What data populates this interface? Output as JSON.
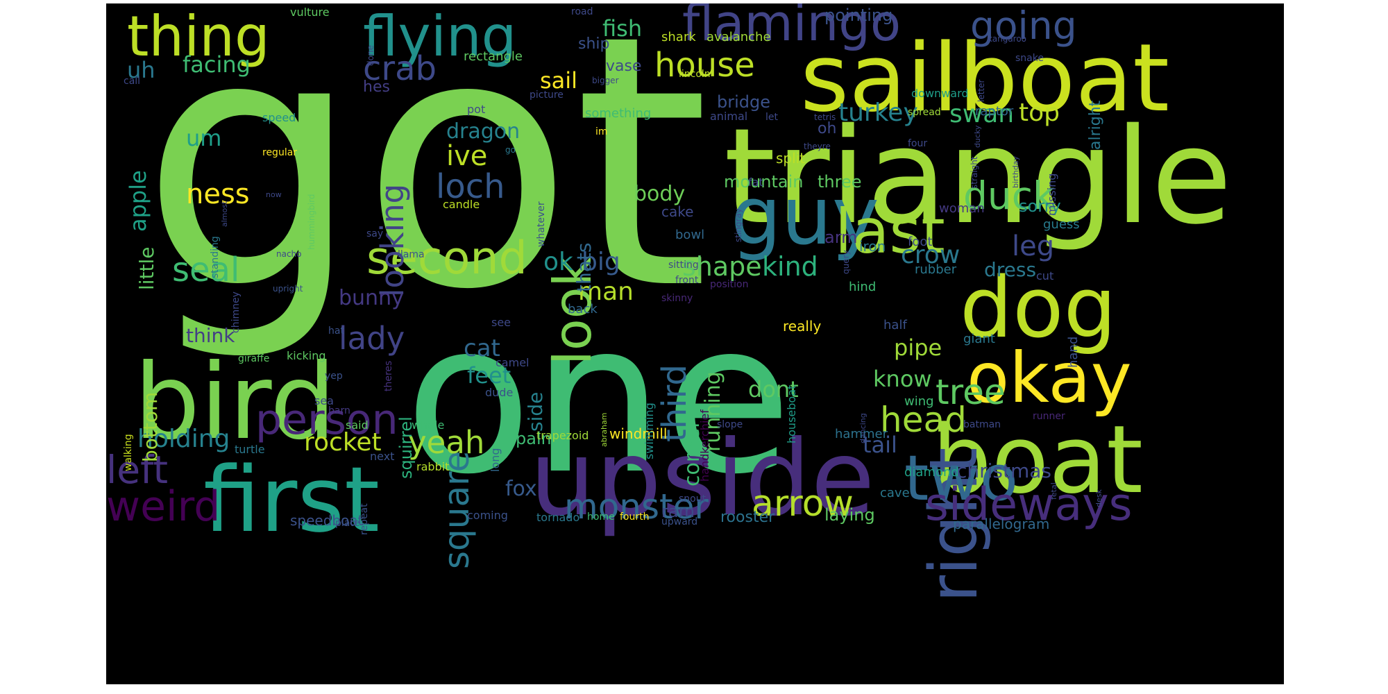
{
  "wordcloud": {
    "words": [
      {
        "text": "got",
        "color": "#7ad151"
      },
      {
        "text": "one",
        "color": "#3fbc73"
      },
      {
        "text": "triangle",
        "color": "#a0da39"
      },
      {
        "text": "sailboat",
        "color": "#cae11f"
      },
      {
        "text": "upside",
        "color": "#472e7c"
      },
      {
        "text": "bird",
        "color": "#7ad151"
      },
      {
        "text": "boat",
        "color": "#a0da39"
      },
      {
        "text": "dog",
        "color": "#bddf26"
      },
      {
        "text": "first",
        "color": "#1fa187"
      },
      {
        "text": "guy",
        "color": "#2a788e"
      },
      {
        "text": "okay",
        "color": "#fde725"
      },
      {
        "text": "right",
        "color": "#3b528b"
      },
      {
        "text": "thing",
        "color": "#bddf26"
      },
      {
        "text": "flying",
        "color": "#21918c"
      },
      {
        "text": "look",
        "color": "#7ad151"
      },
      {
        "text": "last",
        "color": "#a0da39"
      },
      {
        "text": "two",
        "color": "#31688e"
      },
      {
        "text": "flamingo",
        "color": "#414487"
      },
      {
        "text": "second",
        "color": "#a0da39"
      },
      {
        "text": "person",
        "color": "#482878"
      },
      {
        "text": "arrow",
        "color": "#b5de2b"
      },
      {
        "text": "sideways",
        "color": "#472e7c"
      },
      {
        "text": "square",
        "color": "#2a788e"
      },
      {
        "text": "weird",
        "color": "#440154"
      },
      {
        "text": "monster",
        "color": "#31688e"
      },
      {
        "text": "left",
        "color": "#46327e"
      },
      {
        "text": "duck",
        "color": "#5ec962"
      },
      {
        "text": "going",
        "color": "#3b528b"
      },
      {
        "text": "house",
        "color": "#bddf26"
      },
      {
        "text": "crab",
        "color": "#3e4989"
      },
      {
        "text": "head",
        "color": "#a0da39"
      },
      {
        "text": "tree",
        "color": "#5ec962"
      },
      {
        "text": "third",
        "color": "#31688e"
      },
      {
        "text": "loch",
        "color": "#375a8c"
      },
      {
        "text": "looking",
        "color": "#414487"
      },
      {
        "text": "seal",
        "color": "#3fbc73"
      },
      {
        "text": "ness",
        "color": "#fde725"
      },
      {
        "text": "lady",
        "color": "#414487"
      },
      {
        "text": "holding",
        "color": "#26828e"
      },
      {
        "text": "rocket",
        "color": "#bddf26"
      },
      {
        "text": "yeah",
        "color": "#a0da39"
      },
      {
        "text": "shape",
        "color": "#5ec962"
      },
      {
        "text": "kind",
        "color": "#2db27d"
      },
      {
        "text": "ok",
        "color": "#21918c"
      },
      {
        "text": "big",
        "color": "#375a8c"
      },
      {
        "text": "man",
        "color": "#b5de2b"
      },
      {
        "text": "crow",
        "color": "#2a788e"
      },
      {
        "text": "leg",
        "color": "#3e4989"
      },
      {
        "text": "swan",
        "color": "#3fbc73"
      },
      {
        "text": "top",
        "color": "#bddf26"
      },
      {
        "text": "turkey",
        "color": "#26828e"
      },
      {
        "text": "ive",
        "color": "#bddf26"
      },
      {
        "text": "fish",
        "color": "#3fbc73"
      },
      {
        "text": "um",
        "color": "#1f9e89"
      },
      {
        "text": "uh",
        "color": "#2a788e"
      },
      {
        "text": "apple",
        "color": "#1fa187"
      },
      {
        "text": "facing",
        "color": "#3fbc73"
      },
      {
        "text": "sail",
        "color": "#fde725"
      },
      {
        "text": "dragon",
        "color": "#26828e"
      },
      {
        "text": "cat",
        "color": "#31688e"
      },
      {
        "text": "feet",
        "color": "#21918c"
      },
      {
        "text": "running",
        "color": "#5ec962"
      },
      {
        "text": "corner",
        "color": "#3fbc73"
      },
      {
        "text": "pipe",
        "color": "#a0da39"
      },
      {
        "text": "dont",
        "color": "#5ec962"
      },
      {
        "text": "know",
        "color": "#5ec962"
      },
      {
        "text": "tail",
        "color": "#3b528b"
      },
      {
        "text": "christmas",
        "color": "#3e4989"
      },
      {
        "text": "bunny",
        "color": "#443983"
      },
      {
        "text": "think",
        "color": "#433e85"
      },
      {
        "text": "bottom",
        "color": "#a0da39"
      },
      {
        "text": "little",
        "color": "#5ec962"
      },
      {
        "text": "side",
        "color": "#26828e"
      },
      {
        "text": "thats",
        "color": "#31688e"
      },
      {
        "text": "body",
        "color": "#6ece58"
      },
      {
        "text": "fox",
        "color": "#375a8c"
      },
      {
        "text": "dress",
        "color": "#2a788e"
      },
      {
        "text": "sorry",
        "color": "#21918c"
      },
      {
        "text": "mountain",
        "color": "#5ec962"
      },
      {
        "text": "three",
        "color": "#5ec962"
      },
      {
        "text": "bridge",
        "color": "#3b528b"
      },
      {
        "text": "arm",
        "color": "#46327e"
      },
      {
        "text": "squirrel",
        "color": "#2db27d"
      },
      {
        "text": "palm",
        "color": "#3fbc73"
      },
      {
        "text": "ram",
        "color": "#3e4989"
      },
      {
        "text": "rooster",
        "color": "#2c728e"
      },
      {
        "text": "laying",
        "color": "#5ec962"
      },
      {
        "text": "speedboat",
        "color": "#3b528b"
      },
      {
        "text": "parallelogram",
        "color": "#31688e"
      },
      {
        "text": "windmill",
        "color": "#fde725"
      },
      {
        "text": "ship",
        "color": "#3b528b"
      },
      {
        "text": "vase",
        "color": "#3e4989"
      },
      {
        "text": "pointing",
        "color": "#3b528b"
      },
      {
        "text": "alright",
        "color": "#2a788e"
      },
      {
        "text": "hes",
        "color": "#433e85"
      },
      {
        "text": "something",
        "color": "#3fbc73"
      },
      {
        "text": "oh",
        "color": "#3e4989"
      },
      {
        "text": "split",
        "color": "#bddf26"
      },
      {
        "text": "cake",
        "color": "#3e4989"
      },
      {
        "text": "woman",
        "color": "#443983"
      },
      {
        "text": "guess",
        "color": "#287c8e"
      },
      {
        "text": "foot",
        "color": "#3e4989"
      },
      {
        "text": "iron",
        "color": "#2a788e"
      },
      {
        "text": "rubber",
        "color": "#2a788e"
      },
      {
        "text": "hind",
        "color": "#3fbc73"
      },
      {
        "text": "half",
        "color": "#3b528b"
      },
      {
        "text": "giant",
        "color": "#2a788e"
      },
      {
        "text": "hand",
        "color": "#3b528b"
      },
      {
        "text": "wing",
        "color": "#3fbc73"
      },
      {
        "text": "diamond",
        "color": "#1fa187"
      },
      {
        "text": "hammer",
        "color": "#2c728e"
      },
      {
        "text": "cave",
        "color": "#2a788e"
      },
      {
        "text": "really",
        "color": "#fde725"
      },
      {
        "text": "shark",
        "color": "#bddf26"
      },
      {
        "text": "avalanche",
        "color": "#a0da39"
      },
      {
        "text": "rectangle",
        "color": "#5ec962"
      },
      {
        "text": "raptor",
        "color": "#31688e"
      },
      {
        "text": "downward",
        "color": "#1f9e89"
      },
      {
        "text": "missing",
        "color": "#3e4989"
      },
      {
        "text": "back",
        "color": "#31688e"
      },
      {
        "text": "bowl",
        "color": "#31688e"
      },
      {
        "text": "handkerchief",
        "color": "#440154"
      },
      {
        "text": "houseboat",
        "color": "#1f9e89"
      },
      {
        "text": "swimming",
        "color": "#21918c"
      },
      {
        "text": "trapezoid",
        "color": "#a0da39"
      },
      {
        "text": "tornado",
        "color": "#2a788e"
      },
      {
        "text": "home",
        "color": "#3fbc73"
      },
      {
        "text": "fourth",
        "color": "#fde725"
      },
      {
        "text": "upward",
        "color": "#3b528b"
      },
      {
        "text": "coming",
        "color": "#3b528b"
      },
      {
        "text": "long",
        "color": "#31688e"
      },
      {
        "text": "rabbit",
        "color": "#b5de2b"
      },
      {
        "text": "next",
        "color": "#3b528b"
      },
      {
        "text": "repeat",
        "color": "#3b528b"
      },
      {
        "text": "plate",
        "color": "#3b528b"
      },
      {
        "text": "sea",
        "color": "#3e4989"
      },
      {
        "text": "said",
        "color": "#5ec962"
      },
      {
        "text": "whale",
        "color": "#3fbc73"
      },
      {
        "text": "turtle",
        "color": "#2a788e"
      },
      {
        "text": "walking",
        "color": "#cae11f"
      },
      {
        "text": "yep",
        "color": "#3b528b"
      },
      {
        "text": "barn",
        "color": "#443983"
      },
      {
        "text": "dude",
        "color": "#3b528b"
      },
      {
        "text": "camel",
        "color": "#3e4989"
      },
      {
        "text": "see",
        "color": "#3e4989"
      },
      {
        "text": "theres",
        "color": "#46327e"
      },
      {
        "text": "kicking",
        "color": "#5ec962"
      },
      {
        "text": "giraffe",
        "color": "#5ec962"
      },
      {
        "text": "hat",
        "color": "#3b528b"
      },
      {
        "text": "chimney",
        "color": "#3e4989"
      },
      {
        "text": "upright",
        "color": "#3b528b"
      },
      {
        "text": "nacho",
        "color": "#3e4989"
      },
      {
        "text": "llama",
        "color": "#3b528b"
      },
      {
        "text": "say",
        "color": "#3e4989"
      },
      {
        "text": "standing",
        "color": "#2a788e"
      },
      {
        "text": "almost",
        "color": "#3e4989"
      },
      {
        "text": "now",
        "color": "#3e4989"
      },
      {
        "text": "speed",
        "color": "#21918c"
      },
      {
        "text": "regular",
        "color": "#fde725"
      },
      {
        "text": "hummingbird",
        "color": "#5ec962"
      },
      {
        "text": "candle",
        "color": "#bddf26"
      },
      {
        "text": "pot",
        "color": "#3e4989"
      },
      {
        "text": "picture",
        "color": "#3e4989"
      },
      {
        "text": "bigger",
        "color": "#3e4989"
      },
      {
        "text": "call",
        "color": "#3e4989"
      },
      {
        "text": "done",
        "color": "#3e4989"
      },
      {
        "text": "road",
        "color": "#3e4989"
      },
      {
        "text": "vulture",
        "color": "#5ec962"
      },
      {
        "text": "kangaroo",
        "color": "#3e4989"
      },
      {
        "text": "snake",
        "color": "#3e4989"
      },
      {
        "text": "letter",
        "color": "#3e4989"
      },
      {
        "text": "lincoln",
        "color": "#bddf26"
      },
      {
        "text": "im",
        "color": "#fde725"
      },
      {
        "text": "go",
        "color": "#2a788e"
      },
      {
        "text": "animal",
        "color": "#3e4989"
      },
      {
        "text": "let",
        "color": "#3e4989"
      },
      {
        "text": "tetris",
        "color": "#3e4989"
      },
      {
        "text": "spread",
        "color": "#a0da39"
      },
      {
        "text": "four",
        "color": "#3e4989"
      },
      {
        "text": "straight",
        "color": "#3e4989"
      },
      {
        "text": "birthday",
        "color": "#3e4989"
      },
      {
        "text": "theyre",
        "color": "#3e4989"
      },
      {
        "text": "stingray",
        "color": "#3e4989"
      },
      {
        "text": "fat",
        "color": "#3e4989"
      },
      {
        "text": "ducky",
        "color": "#3e4989"
      },
      {
        "text": "whatever",
        "color": "#3b528b"
      },
      {
        "text": "sitting",
        "color": "#3e4989"
      },
      {
        "text": "front",
        "color": "#3e4989"
      },
      {
        "text": "position",
        "color": "#482878"
      },
      {
        "text": "skinny",
        "color": "#482878"
      },
      {
        "text": "query",
        "color": "#3e4989"
      },
      {
        "text": "cut",
        "color": "#3e4989"
      },
      {
        "text": "slope",
        "color": "#3e4989"
      },
      {
        "text": "abraham",
        "color": "#a0da39"
      },
      {
        "text": "dancing",
        "color": "#3e4989"
      },
      {
        "text": "batman",
        "color": "#3e4989"
      },
      {
        "text": "runner",
        "color": "#482878"
      },
      {
        "text": "fetal",
        "color": "#3e4989"
      },
      {
        "text": "desk",
        "color": "#3e4989"
      },
      {
        "text": "snout",
        "color": "#3e4989"
      }
    ]
  }
}
